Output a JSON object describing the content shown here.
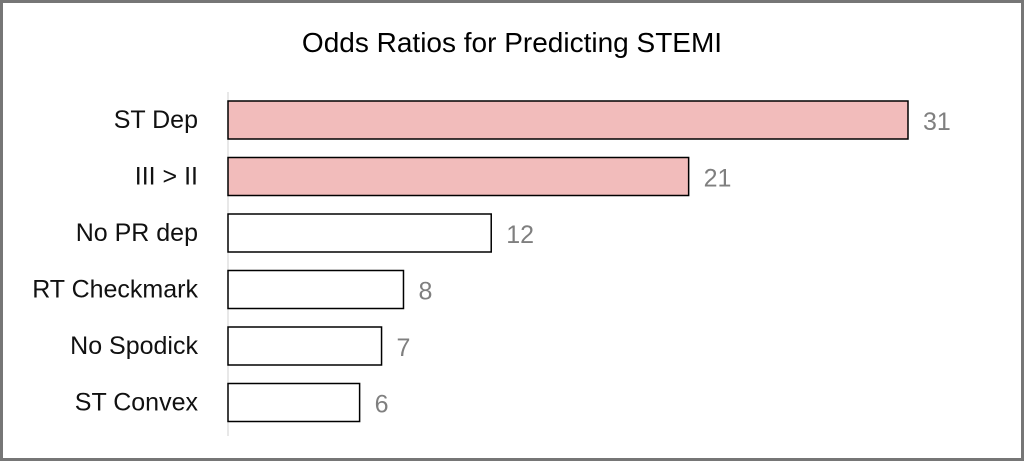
{
  "chart_data": {
    "type": "bar",
    "orientation": "horizontal",
    "title": "Odds Ratios for Predicting STEMI",
    "categories": [
      "ST Dep",
      "III > II",
      "No PR dep",
      "RT Checkmark",
      "No Spodick",
      "ST Convex"
    ],
    "values": [
      31,
      21,
      12,
      8,
      7,
      6
    ],
    "highlighted": [
      true,
      true,
      false,
      false,
      false,
      false
    ],
    "data_labels": true,
    "xlabel": "",
    "ylabel": "",
    "xlim": [
      0,
      31
    ],
    "grid": false,
    "legend": "none",
    "colors": {
      "highlight_fill": "#f2bcbb",
      "default_fill": "#ffffff",
      "bar_outline": "#000000",
      "value_label": "#7f7f7f",
      "axis_line": "#d0d0d0",
      "frame_border": "#767676"
    }
  }
}
